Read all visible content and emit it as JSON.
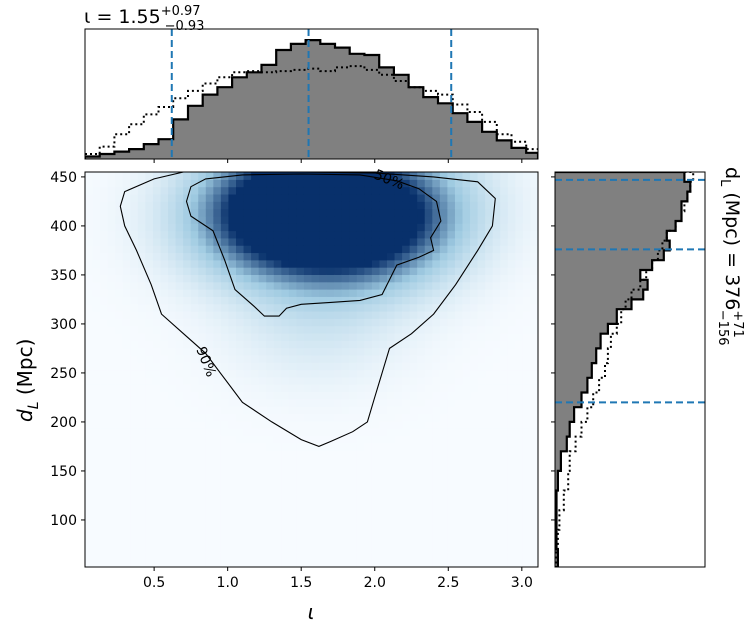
{
  "chart_data": {
    "type": "heatmap",
    "top_title": {
      "prefix": "ι = 1.55",
      "sup": "+0.97",
      "sub": "−0.93"
    },
    "right_title": {
      "prefix": "d",
      "prefix_sub": "L",
      "middle": " (Mpc) = 376",
      "sup": "+71",
      "sub": "−156"
    },
    "xlabel": "ι",
    "ylabel": {
      "prefix": "d",
      "sub": "L",
      "suffix": " (Mpc)"
    },
    "xlim": [
      0.03,
      3.11
    ],
    "ylim": [
      52,
      455
    ],
    "xticks": [
      0.5,
      1.0,
      1.5,
      2.0,
      2.5,
      3.0
    ],
    "xtick_labels": [
      "0.5",
      "1.0",
      "1.5",
      "2.0",
      "2.5",
      "3.0"
    ],
    "yticks": [
      100,
      150,
      200,
      250,
      300,
      350,
      400,
      450
    ],
    "ytick_labels": [
      "100",
      "150",
      "200",
      "250",
      "300",
      "350",
      "400",
      "450"
    ],
    "contour_labels": [
      "50%",
      "90%"
    ],
    "contours": {
      "50%": [
        [
          0.72,
          425
        ],
        [
          0.75,
          440
        ],
        [
          0.85,
          448
        ],
        [
          1.1,
          452
        ],
        [
          1.5,
          453
        ],
        [
          1.9,
          452
        ],
        [
          2.15,
          446
        ],
        [
          2.3,
          438
        ],
        [
          2.42,
          425
        ],
        [
          2.45,
          405
        ],
        [
          2.38,
          388
        ],
        [
          2.4,
          375
        ],
        [
          2.3,
          368
        ],
        [
          2.15,
          360
        ],
        [
          2.1,
          345
        ],
        [
          2.05,
          330
        ],
        [
          1.9,
          324
        ],
        [
          1.7,
          322
        ],
        [
          1.5,
          320
        ],
        [
          1.4,
          316
        ],
        [
          1.35,
          308
        ],
        [
          1.25,
          308
        ],
        [
          1.18,
          318
        ],
        [
          1.05,
          335
        ],
        [
          0.98,
          365
        ],
        [
          0.9,
          395
        ],
        [
          0.75,
          410
        ]
      ],
      "90%": [
        [
          0.27,
          420
        ],
        [
          0.3,
          435
        ],
        [
          0.5,
          448
        ],
        [
          0.7,
          455
        ],
        [
          1.0,
          456
        ],
        [
          1.5,
          455
        ],
        [
          2.0,
          454
        ],
        [
          2.4,
          450
        ],
        [
          2.7,
          445
        ],
        [
          2.82,
          428
        ],
        [
          2.8,
          400
        ],
        [
          2.7,
          375
        ],
        [
          2.55,
          340
        ],
        [
          2.4,
          310
        ],
        [
          2.25,
          290
        ],
        [
          2.1,
          275
        ],
        [
          2.05,
          250
        ],
        [
          2.0,
          225
        ],
        [
          1.95,
          200
        ],
        [
          1.85,
          190
        ],
        [
          1.7,
          180
        ],
        [
          1.62,
          175
        ],
        [
          1.5,
          182
        ],
        [
          1.3,
          200
        ],
        [
          1.1,
          220
        ],
        [
          0.95,
          250
        ],
        [
          0.85,
          270
        ],
        [
          0.7,
          290
        ],
        [
          0.55,
          310
        ],
        [
          0.48,
          340
        ],
        [
          0.38,
          375
        ],
        [
          0.3,
          400
        ]
      ]
    },
    "density_peaks": [
      {
        "x": 1.47,
        "y": 422,
        "weight": 1.0
      },
      {
        "x": 1.75,
        "y": 410,
        "weight": 0.75
      },
      {
        "x": 2.05,
        "y": 395,
        "weight": 0.55
      },
      {
        "x": 1.15,
        "y": 405,
        "weight": 0.5
      },
      {
        "x": 1.6,
        "y": 300,
        "weight": 0.22
      },
      {
        "x": 2.25,
        "y": 430,
        "weight": 0.35
      }
    ],
    "marginal_x": {
      "posterior": [
        [
          0.03,
          0.02
        ],
        [
          0.13,
          0.04
        ],
        [
          0.23,
          0.06
        ],
        [
          0.33,
          0.08
        ],
        [
          0.43,
          0.12
        ],
        [
          0.53,
          0.16
        ],
        [
          0.63,
          0.32
        ],
        [
          0.73,
          0.43
        ],
        [
          0.83,
          0.52
        ],
        [
          0.93,
          0.58
        ],
        [
          1.03,
          0.66
        ],
        [
          1.13,
          0.7
        ],
        [
          1.23,
          0.76
        ],
        [
          1.33,
          0.88
        ],
        [
          1.43,
          0.93
        ],
        [
          1.53,
          0.96
        ],
        [
          1.63,
          0.93
        ],
        [
          1.73,
          0.9
        ],
        [
          1.83,
          0.85
        ],
        [
          1.93,
          0.84
        ],
        [
          2.03,
          0.74
        ],
        [
          2.13,
          0.68
        ],
        [
          2.23,
          0.58
        ],
        [
          2.33,
          0.5
        ],
        [
          2.43,
          0.45
        ],
        [
          2.53,
          0.37
        ],
        [
          2.63,
          0.3
        ],
        [
          2.73,
          0.22
        ],
        [
          2.83,
          0.15
        ],
        [
          2.93,
          0.09
        ],
        [
          3.03,
          0.05
        ]
      ],
      "prior": [
        [
          0.03,
          0.04
        ],
        [
          0.13,
          0.1
        ],
        [
          0.23,
          0.2
        ],
        [
          0.33,
          0.28
        ],
        [
          0.43,
          0.36
        ],
        [
          0.53,
          0.42
        ],
        [
          0.63,
          0.49
        ],
        [
          0.73,
          0.55
        ],
        [
          0.83,
          0.61
        ],
        [
          0.93,
          0.66
        ],
        [
          1.03,
          0.7
        ],
        [
          1.13,
          0.71
        ],
        [
          1.23,
          0.7
        ],
        [
          1.33,
          0.71
        ],
        [
          1.43,
          0.72
        ],
        [
          1.53,
          0.73
        ],
        [
          1.63,
          0.71
        ],
        [
          1.73,
          0.74
        ],
        [
          1.83,
          0.75
        ],
        [
          1.93,
          0.72
        ],
        [
          2.03,
          0.68
        ],
        [
          2.13,
          0.63
        ],
        [
          2.23,
          0.58
        ],
        [
          2.33,
          0.55
        ],
        [
          2.43,
          0.52
        ],
        [
          2.53,
          0.44
        ],
        [
          2.63,
          0.38
        ],
        [
          2.73,
          0.3
        ],
        [
          2.83,
          0.2
        ],
        [
          2.93,
          0.14
        ],
        [
          3.03,
          0.08
        ]
      ],
      "lines": [
        0.62,
        1.55,
        2.52
      ],
      "ymax": 1.0
    },
    "marginal_y": {
      "posterior": [
        [
          52,
          0.02
        ],
        [
          70,
          0.01
        ],
        [
          90,
          0.01
        ],
        [
          110,
          0.01
        ],
        [
          130,
          0.02
        ],
        [
          150,
          0.04
        ],
        [
          170,
          0.08
        ],
        [
          185,
          0.1
        ],
        [
          200,
          0.13
        ],
        [
          215,
          0.18
        ],
        [
          230,
          0.22
        ],
        [
          245,
          0.25
        ],
        [
          260,
          0.28
        ],
        [
          275,
          0.31
        ],
        [
          290,
          0.36
        ],
        [
          300,
          0.42
        ],
        [
          315,
          0.52
        ],
        [
          325,
          0.6
        ],
        [
          335,
          0.63
        ],
        [
          345,
          0.58
        ],
        [
          355,
          0.66
        ],
        [
          365,
          0.74
        ],
        [
          375,
          0.78
        ],
        [
          385,
          0.76
        ],
        [
          395,
          0.82
        ],
        [
          405,
          0.86
        ],
        [
          415,
          0.86
        ],
        [
          425,
          0.9
        ],
        [
          435,
          0.92
        ],
        [
          445,
          0.88
        ]
      ],
      "prior": [
        [
          52,
          0.01
        ],
        [
          70,
          0.02
        ],
        [
          90,
          0.03
        ],
        [
          110,
          0.06
        ],
        [
          130,
          0.09
        ],
        [
          150,
          0.1
        ],
        [
          170,
          0.14
        ],
        [
          185,
          0.18
        ],
        [
          200,
          0.22
        ],
        [
          215,
          0.26
        ],
        [
          230,
          0.3
        ],
        [
          245,
          0.34
        ],
        [
          260,
          0.36
        ],
        [
          275,
          0.38
        ],
        [
          290,
          0.42
        ],
        [
          300,
          0.45
        ],
        [
          315,
          0.48
        ],
        [
          325,
          0.52
        ],
        [
          335,
          0.58
        ],
        [
          345,
          0.62
        ],
        [
          355,
          0.66
        ],
        [
          365,
          0.7
        ],
        [
          375,
          0.73
        ],
        [
          385,
          0.76
        ],
        [
          395,
          0.82
        ],
        [
          405,
          0.86
        ],
        [
          415,
          0.88
        ],
        [
          425,
          0.9
        ],
        [
          435,
          0.92
        ],
        [
          445,
          0.94
        ]
      ],
      "lines": [
        220,
        376,
        447
      ],
      "xmax": 1.0
    },
    "colors": {
      "fill": "#808080",
      "step_line": "#000000",
      "dash_line": "#1f77b4",
      "map_low": "#f7fbff",
      "map_high": "#08306b"
    }
  }
}
